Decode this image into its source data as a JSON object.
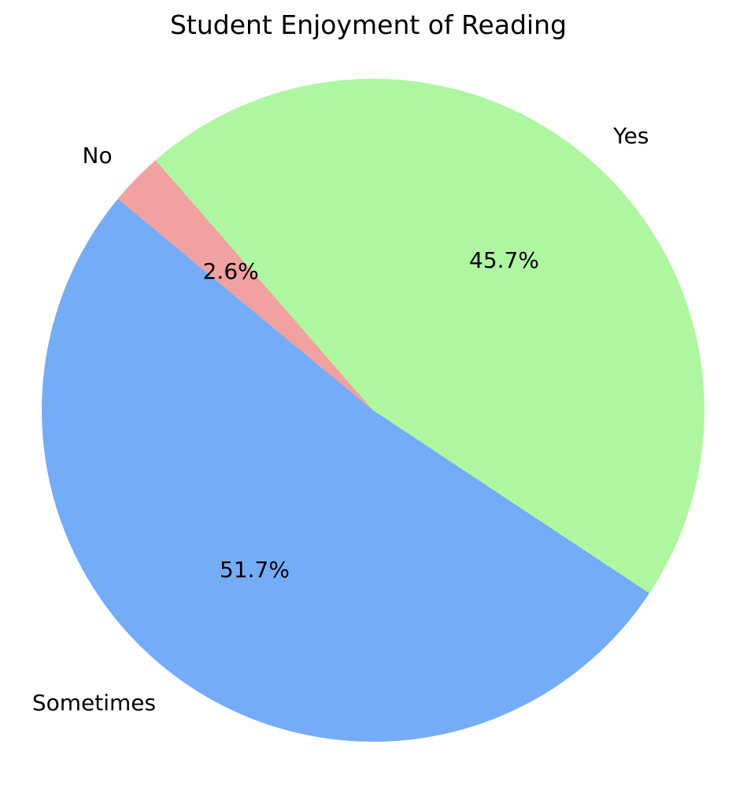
{
  "chart_data": {
    "type": "pie",
    "title": "Student Enjoyment of Reading",
    "categories": [
      "Yes",
      "No",
      "Sometimes"
    ],
    "values": [
      45.7,
      2.6,
      51.7
    ],
    "slices": [
      {
        "label": "Yes",
        "value": 45.7,
        "pct_label": "45.7%",
        "color": "#aef7a0"
      },
      {
        "label": "No",
        "value": 2.6,
        "pct_label": "2.6%",
        "color": "#f1a1a0"
      },
      {
        "label": "Sometimes",
        "value": 51.7,
        "pct_label": "51.7%",
        "color": "#75acf7"
      }
    ],
    "start_angle_deg": -33.5,
    "direction": "counterclockwise",
    "legend": "none",
    "background": "#ffffff",
    "text_color": "#000000"
  }
}
